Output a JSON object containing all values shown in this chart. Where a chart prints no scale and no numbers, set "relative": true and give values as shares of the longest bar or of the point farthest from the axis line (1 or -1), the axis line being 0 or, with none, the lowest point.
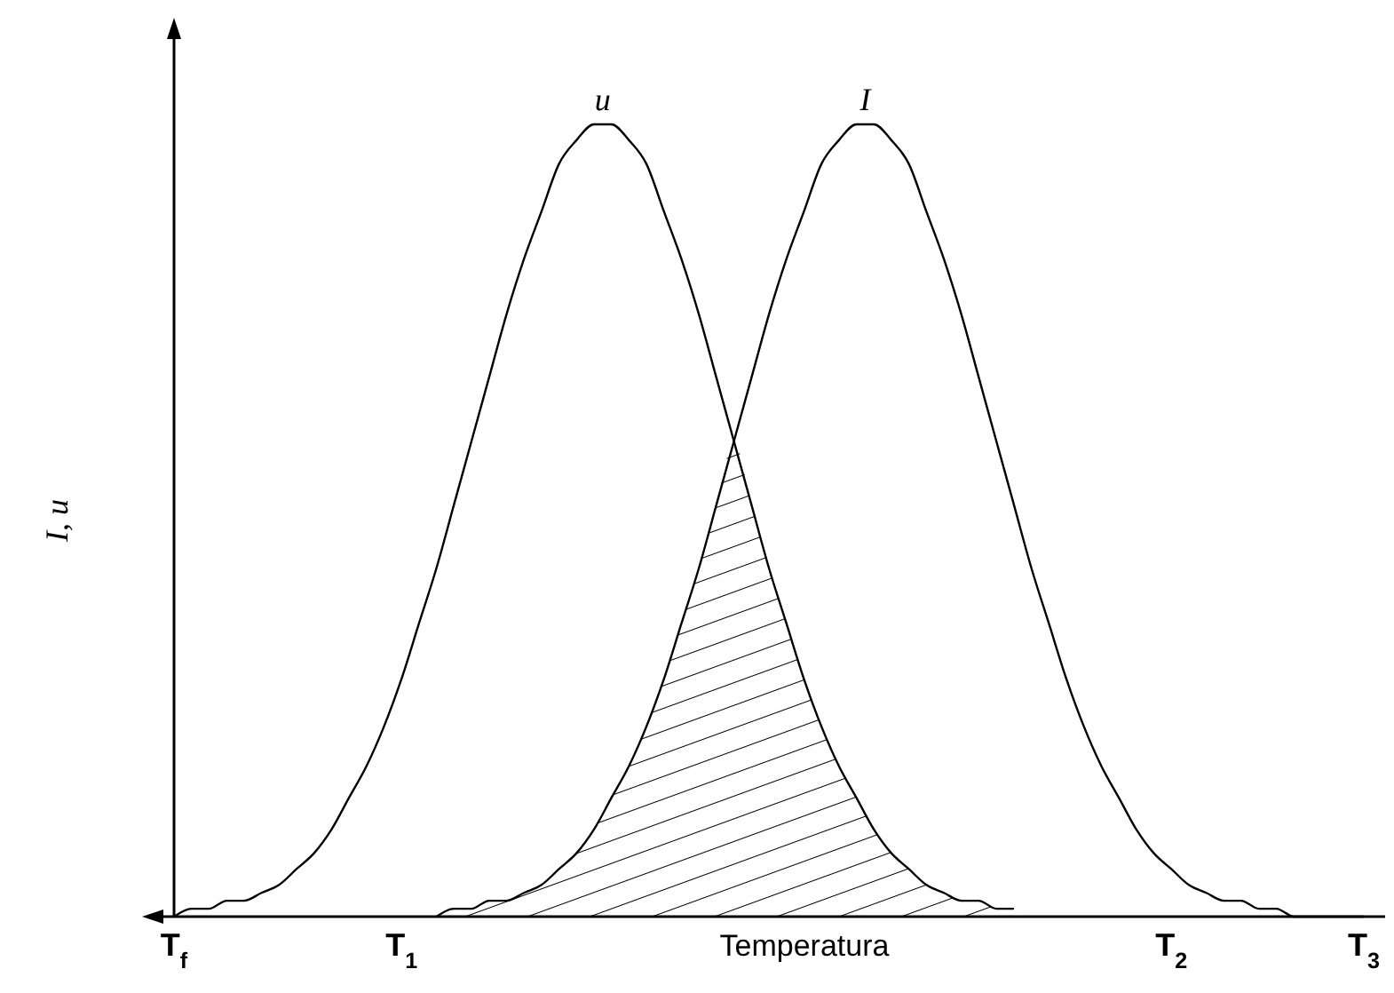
{
  "chart_data": {
    "type": "line",
    "relative": true,
    "xlabel": "Temperatura",
    "ylabel": "I, u",
    "line_style": "solid",
    "categories": [
      "T$_{f}$",
      null,
      null,
      null,
      null,
      null,
      null,
      null,
      null,
      null,
      null,
      null,
      null,
      "T$_{1}$",
      null,
      null,
      null,
      null,
      null,
      null,
      null,
      null,
      null,
      null,
      null,
      null,
      null,
      null,
      null,
      null,
      null,
      null,
      null,
      null,
      null,
      null,
      null,
      null,
      null,
      null,
      null,
      null,
      null,
      null,
      null,
      null,
      null,
      null,
      null,
      null,
      null,
      null,
      null,
      null,
      null,
      null,
      null,
      "T$_{2}$",
      null,
      null,
      null,
      null,
      null,
      null,
      null,
      null,
      null,
      null,
      "T$_{3}$"
    ],
    "series": [
      {
        "name": "u",
        "color": "#000000",
        "values": [
          0,
          0.01,
          0.01,
          0.02,
          0.02,
          0.03,
          0.04,
          0.06,
          0.08,
          0.11,
          0.15,
          0.19,
          0.24,
          0.3,
          0.37,
          0.44,
          0.52,
          0.6,
          0.68,
          0.76,
          0.83,
          0.89,
          0.95,
          0.98,
          1,
          1,
          0.98,
          0.95,
          0.89,
          0.83,
          0.76,
          0.68,
          0.6,
          0.52,
          0.44,
          0.37,
          0.3,
          0.24,
          0.19,
          0.15,
          0.11,
          0.08,
          0.06,
          0.04,
          0.03,
          0.02,
          0.02,
          0.01,
          0.01,
          null,
          null,
          null,
          null,
          null,
          null,
          null,
          null,
          null,
          null,
          null,
          null,
          null,
          null,
          null,
          null,
          null,
          null,
          null,
          null
        ]
      },
      {
        "name": "I",
        "color": "#000000",
        "values": [
          null,
          null,
          null,
          null,
          null,
          null,
          null,
          null,
          null,
          null,
          null,
          null,
          null,
          null,
          null,
          0,
          0.01,
          0.01,
          0.02,
          0.02,
          0.03,
          0.04,
          0.06,
          0.08,
          0.11,
          0.15,
          0.19,
          0.24,
          0.3,
          0.37,
          0.44,
          0.52,
          0.6,
          0.68,
          0.76,
          0.83,
          0.89,
          0.95,
          0.98,
          1,
          1,
          0.98,
          0.95,
          0.89,
          0.83,
          0.76,
          0.68,
          0.6,
          0.52,
          0.44,
          0.37,
          0.3,
          0.24,
          0.19,
          0.15,
          0.11,
          0.08,
          0.06,
          0.04,
          0.03,
          0.02,
          0.02,
          0.01,
          0.01,
          0,
          0,
          0,
          0,
          0
        ]
      }
    ]
  }
}
